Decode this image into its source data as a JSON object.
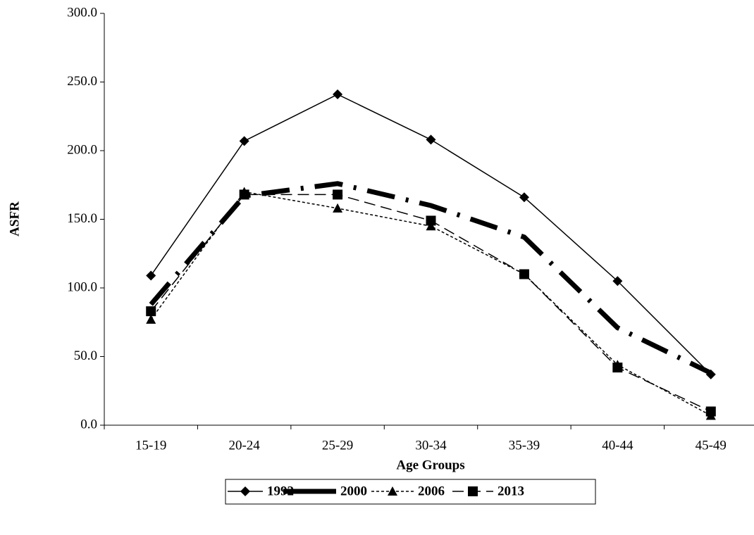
{
  "chart_data": {
    "type": "line",
    "x_label": "Age Groups",
    "y_label": "ASFR",
    "categories": [
      "15-19",
      "20-24",
      "25-29",
      "30-34",
      "35-39",
      "40-44",
      "45-49"
    ],
    "series": [
      {
        "name": "1992",
        "color": "#000000",
        "line_style": "solid",
        "marker": "diamond",
        "values": [
          109,
          207,
          241,
          208,
          166,
          105,
          37
        ]
      },
      {
        "name": "2000",
        "color": "#000000",
        "line_style": "thick-dash-dot",
        "marker": "none",
        "values": [
          88,
          167,
          176,
          160,
          137,
          71,
          38
        ]
      },
      {
        "name": "2006",
        "color": "#000000",
        "line_style": "dotted",
        "marker": "triangle",
        "values": [
          77,
          170,
          158,
          145,
          110,
          44,
          7
        ]
      },
      {
        "name": "2013",
        "color": "#000000",
        "line_style": "dashed",
        "marker": "square",
        "values": [
          83,
          168,
          168,
          149,
          110,
          42,
          10
        ]
      }
    ],
    "ylim": [
      0,
      300
    ],
    "yticks": [
      {
        "value": 0,
        "label": "0.0"
      },
      {
        "value": 50,
        "label": "50.0"
      },
      {
        "value": 100,
        "label": "100.0"
      },
      {
        "value": 150,
        "label": "150.0"
      },
      {
        "value": 200,
        "label": "200.0"
      },
      {
        "value": 250,
        "label": "250.0"
      },
      {
        "value": 300,
        "label": "300.0"
      }
    ],
    "legend_position": "bottom"
  }
}
